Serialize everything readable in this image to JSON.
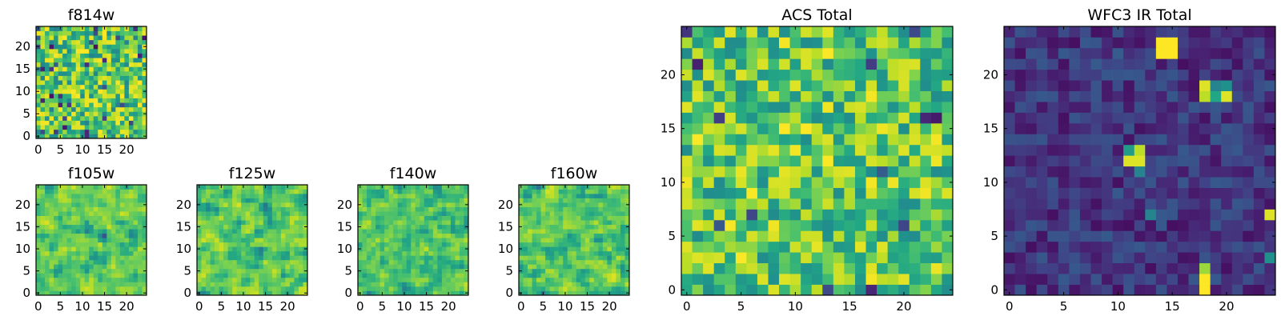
{
  "chart_data": [
    {
      "type": "heatmap",
      "title": "f814w",
      "xticks": [
        0,
        5,
        10,
        15,
        20
      ],
      "yticks": [
        0,
        5,
        10,
        15,
        20
      ],
      "xlim": [
        -0.5,
        24.5
      ],
      "ylim": [
        -0.5,
        24.5
      ],
      "grid_size": 25,
      "colormap": "viridis",
      "pattern": {
        "seed": 11,
        "base": 0.72,
        "spread": 0.28,
        "smooth": 0,
        "dark_frac": 0.05,
        "bright_frac": 0.1
      }
    },
    {
      "type": "heatmap",
      "title": "f105w",
      "xticks": [
        0,
        5,
        10,
        15,
        20
      ],
      "yticks": [
        0,
        5,
        10,
        15,
        20
      ],
      "xlim": [
        -0.5,
        24.5
      ],
      "ylim": [
        -0.5,
        24.5
      ],
      "grid_size": 25,
      "colormap": "viridis",
      "pattern": {
        "seed": 23,
        "base": 0.76,
        "spread": 0.22,
        "smooth": 1,
        "dark_frac": 0.03,
        "bright_frac": 0.08
      }
    },
    {
      "type": "heatmap",
      "title": "f125w",
      "xticks": [
        0,
        5,
        10,
        15,
        20
      ],
      "yticks": [
        0,
        5,
        10,
        15,
        20
      ],
      "xlim": [
        -0.5,
        24.5
      ],
      "ylim": [
        -0.5,
        24.5
      ],
      "grid_size": 25,
      "colormap": "viridis",
      "pattern": {
        "seed": 37,
        "base": 0.74,
        "spread": 0.26,
        "smooth": 1,
        "dark_frac": 0.04,
        "bright_frac": 0.1
      }
    },
    {
      "type": "heatmap",
      "title": "f140w",
      "xticks": [
        0,
        5,
        10,
        15,
        20
      ],
      "yticks": [
        0,
        5,
        10,
        15,
        20
      ],
      "xlim": [
        -0.5,
        24.5
      ],
      "ylim": [
        -0.5,
        24.5
      ],
      "grid_size": 25,
      "colormap": "viridis",
      "pattern": {
        "seed": 41,
        "base": 0.72,
        "spread": 0.26,
        "smooth": 1,
        "dark_frac": 0.04,
        "bright_frac": 0.06
      }
    },
    {
      "type": "heatmap",
      "title": "f160w",
      "xticks": [
        0,
        5,
        10,
        15,
        20
      ],
      "yticks": [
        0,
        5,
        10,
        15,
        20
      ],
      "xlim": [
        -0.5,
        24.5
      ],
      "ylim": [
        -0.5,
        24.5
      ],
      "grid_size": 25,
      "colormap": "viridis",
      "pattern": {
        "seed": 53,
        "base": 0.74,
        "spread": 0.26,
        "smooth": 1,
        "dark_frac": 0.05,
        "bright_frac": 0.1
      }
    },
    {
      "type": "heatmap",
      "title": "ACS Total",
      "xticks": [
        0,
        5,
        10,
        15,
        20
      ],
      "yticks": [
        0,
        5,
        10,
        15,
        20
      ],
      "xlim": [
        -0.5,
        24.5
      ],
      "ylim": [
        -0.5,
        24.5
      ],
      "grid_size": 25,
      "colormap": "viridis",
      "pattern": {
        "seed": 67,
        "base": 0.72,
        "spread": 0.24,
        "smooth": 0,
        "dark_frac": 0.02,
        "bright_frac": 0.08
      }
    },
    {
      "type": "heatmap",
      "title": "WFC3 IR Total",
      "xticks": [
        0,
        5,
        10,
        15,
        20
      ],
      "yticks": [
        0,
        5,
        10,
        15,
        20
      ],
      "xlim": [
        -0.5,
        24.5
      ],
      "ylim": [
        -0.5,
        24.5
      ],
      "grid_size": 25,
      "colormap": "viridis",
      "pattern": {
        "seed": 79,
        "base": 0.16,
        "spread": 0.12,
        "smooth": 0,
        "dark_frac": 0.04,
        "bright_frac": 0
      },
      "hotspots": [
        {
          "x": 14,
          "y": 23,
          "value": 1.0
        },
        {
          "x": 15,
          "y": 23,
          "value": 1.0
        },
        {
          "x": 14,
          "y": 22,
          "value": 1.0
        },
        {
          "x": 15,
          "y": 22,
          "value": 1.0
        },
        {
          "x": 18,
          "y": 19,
          "value": 0.95
        },
        {
          "x": 18,
          "y": 18,
          "value": 0.9
        },
        {
          "x": 20,
          "y": 18,
          "value": 0.95
        },
        {
          "x": 19,
          "y": 18,
          "value": 0.6
        },
        {
          "x": 19,
          "y": 19,
          "value": 0.45
        },
        {
          "x": 20,
          "y": 19,
          "value": 0.5
        },
        {
          "x": 11,
          "y": 13,
          "value": 0.55
        },
        {
          "x": 12,
          "y": 13,
          "value": 0.9
        },
        {
          "x": 11,
          "y": 12,
          "value": 0.95
        },
        {
          "x": 12,
          "y": 12,
          "value": 0.95
        },
        {
          "x": 12,
          "y": 11,
          "value": 0.45
        },
        {
          "x": 18,
          "y": 2,
          "value": 0.85
        },
        {
          "x": 18,
          "y": 1,
          "value": 1.0
        },
        {
          "x": 18,
          "y": 0,
          "value": 1.0
        },
        {
          "x": 24,
          "y": 7,
          "value": 0.95
        },
        {
          "x": 24,
          "y": 3,
          "value": 0.5
        },
        {
          "x": 13,
          "y": 7,
          "value": 0.45
        }
      ]
    }
  ]
}
